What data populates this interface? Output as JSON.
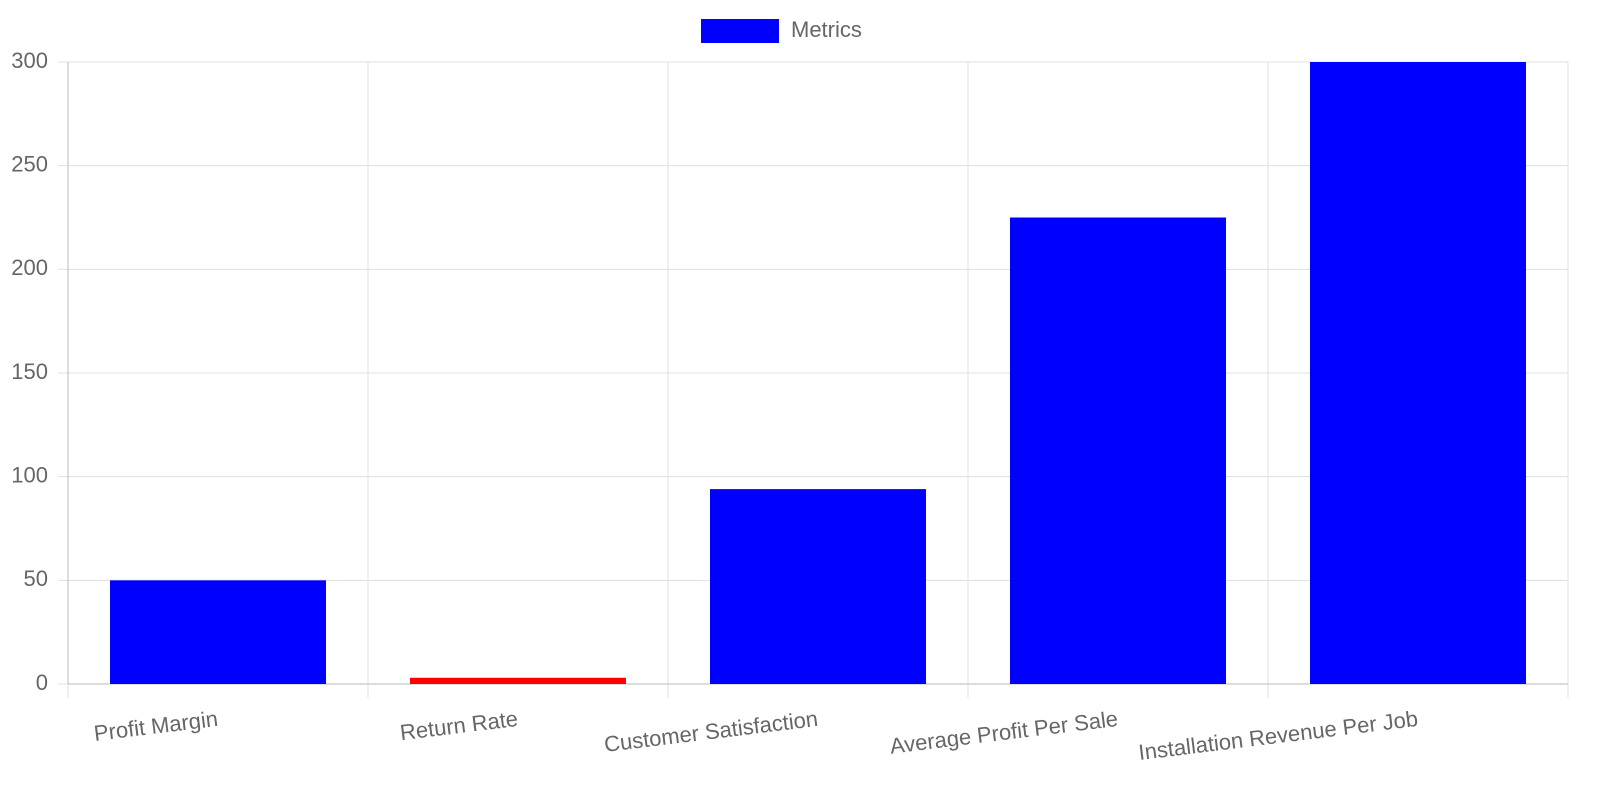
{
  "chart_data": {
    "type": "bar",
    "categories": [
      "Profit Margin",
      "Return Rate",
      "Customer Satisfaction",
      "Average Profit Per Sale",
      "Installation Revenue Per Job"
    ],
    "series": [
      {
        "name": "Metrics",
        "color": "#0000ff",
        "colors": [
          "#0000ff",
          "#ff0000",
          "#0000ff",
          "#0000ff",
          "#0000ff"
        ],
        "values": [
          50,
          3,
          94,
          225,
          300
        ]
      }
    ],
    "ylim": [
      0,
      300
    ],
    "yticks": [
      0,
      50,
      100,
      150,
      200,
      250,
      300
    ],
    "grid": true
  }
}
